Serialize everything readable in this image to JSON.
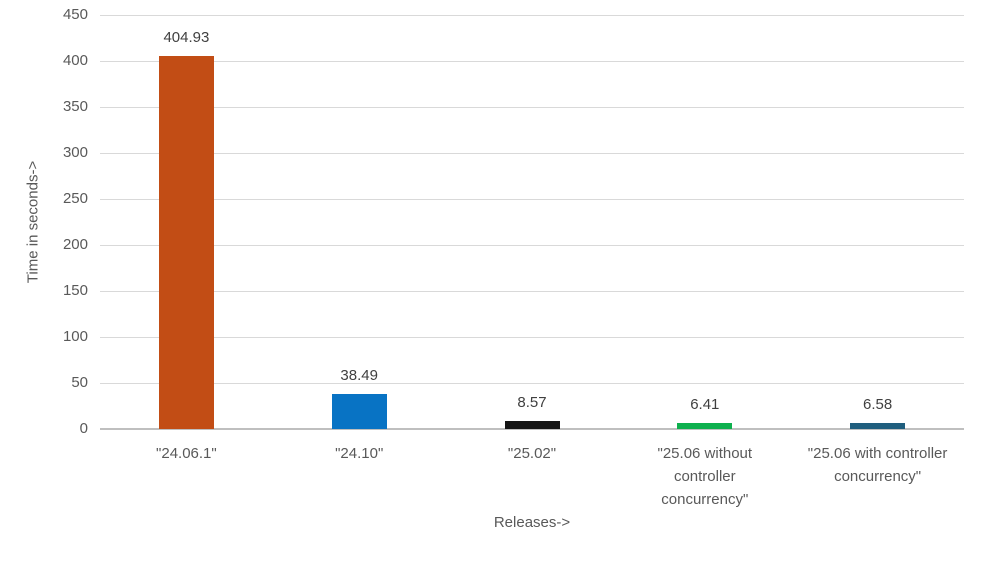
{
  "chart_data": {
    "type": "bar",
    "title": "",
    "xlabel": "Releases->",
    "ylabel": "Time in seconds->",
    "ylim": [
      0,
      450
    ],
    "ytick_step": 50,
    "yticks": [
      0,
      50,
      100,
      150,
      200,
      250,
      300,
      350,
      400,
      450
    ],
    "grid": true,
    "legend": "none",
    "categories": [
      {
        "label": "\"24.06.1\"",
        "lines": [
          "\"24.06.1\""
        ]
      },
      {
        "label": "\"24.10\"",
        "lines": [
          "\"24.10\""
        ]
      },
      {
        "label": "\"25.02\"",
        "lines": [
          "\"25.02\""
        ]
      },
      {
        "label": "\"25.06 without controller concurrency\"",
        "lines": [
          "\"25.06 without",
          "controller",
          "concurrency\""
        ]
      },
      {
        "label": "\"25.06 with controller concurrency\"",
        "lines": [
          "\"25.06 with controller",
          "concurrency\""
        ]
      }
    ],
    "values": [
      404.93,
      38.49,
      8.57,
      6.41,
      6.58
    ],
    "data_labels": [
      "404.93",
      "38.49",
      "8.57",
      "6.41",
      "6.58"
    ],
    "bar_colors": [
      "#C24D15",
      "#0873C4",
      "#151515",
      "#0EB04E",
      "#1F5E7E"
    ],
    "grid_color": "#d9d9d9",
    "axis_line_color": "#bfbfbf",
    "tick_label_color": "#595959",
    "data_label_color": "#404040"
  }
}
